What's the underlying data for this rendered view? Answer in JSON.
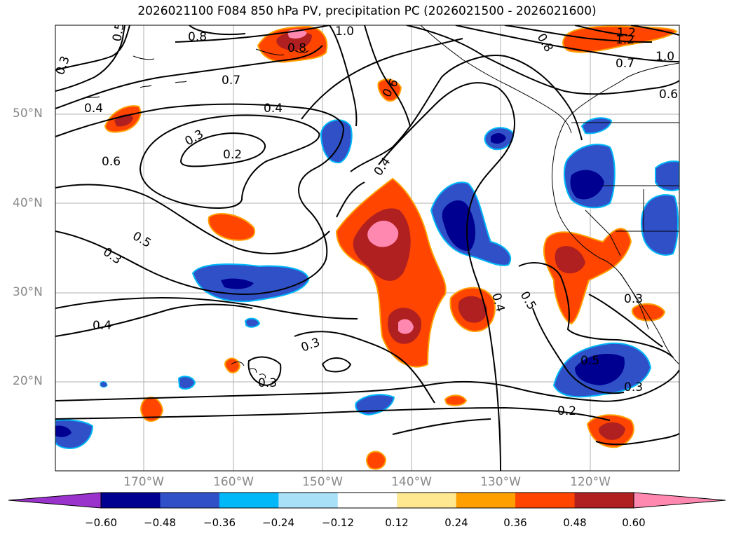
{
  "title": "2026021100 F084 850 hPa PV, precipitation PC (2026021500 - 2026021600)",
  "lat_labels": [
    "50°N",
    "40°N",
    "30°N",
    "20°N"
  ],
  "lon_labels": [
    "170°W",
    "160°W",
    "150°W",
    "140°W",
    "130°W",
    "120°W"
  ],
  "colorbar": {
    "ticks": [
      "−0.60",
      "−0.48",
      "−0.36",
      "−0.24",
      "−0.12",
      "0.12",
      "0.24",
      "0.36",
      "0.48",
      "0.60"
    ],
    "colors": [
      "#9933cc",
      "#000090",
      "#3050c8",
      "#00b8f8",
      "#a8e0f8",
      "#ffffff",
      "#ffe890",
      "#ffa000",
      "#ff4500",
      "#b02020",
      "#ff88b0"
    ]
  },
  "contour_labels": [
    "0.5",
    "0.3",
    "0.8",
    "1.0",
    "0.7",
    "0.4",
    "0.6",
    "0.3",
    "0.2",
    "0.4",
    "0.6",
    "0.4",
    "0.5",
    "0.3",
    "0.4",
    "0.3",
    "0.3",
    "0.4",
    "0.5",
    "0.5",
    "0.3",
    "0.2",
    "0.3",
    "1.2",
    "1.0",
    "0.7",
    "0.8",
    "0.6",
    "0.8",
    "1.2"
  ]
}
